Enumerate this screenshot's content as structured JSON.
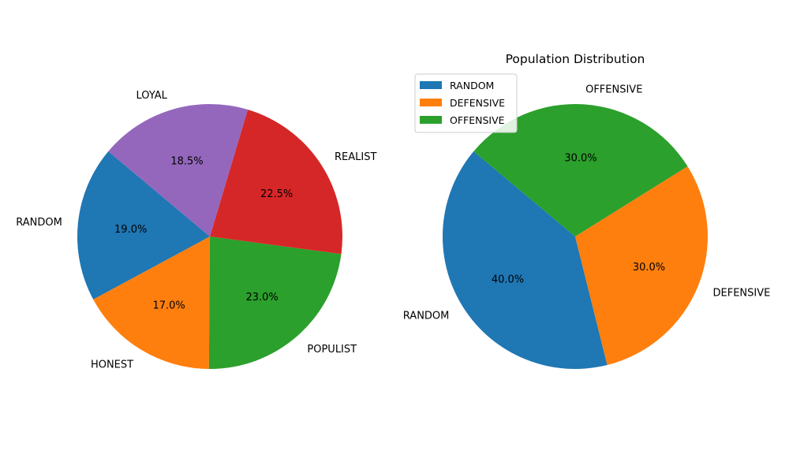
{
  "chart_data": [
    {
      "type": "pie",
      "title": "",
      "start_angle_deg": 140,
      "counterclockwise": true,
      "autopct_format": "{value}%",
      "slices": [
        {
          "label": "RANDOM",
          "value": 19.0,
          "pct_text": "19.0%",
          "color": "#1f77b4"
        },
        {
          "label": "HONEST",
          "value": 17.0,
          "pct_text": "17.0%",
          "color": "#ff7f0e"
        },
        {
          "label": "POPULIST",
          "value": 23.0,
          "pct_text": "23.0%",
          "color": "#2ca02c"
        },
        {
          "label": "REALIST",
          "value": 22.5,
          "pct_text": "22.5%",
          "color": "#d62728"
        },
        {
          "label": "LOYAL",
          "value": 18.5,
          "pct_text": "18.5%",
          "color": "#9467bd"
        }
      ],
      "legend": null
    },
    {
      "type": "pie",
      "title": "Population Distribution",
      "start_angle_deg": 140,
      "counterclockwise": true,
      "slices": [
        {
          "label": "RANDOM",
          "value": 40.0,
          "pct_text": "40.0%",
          "color": "#1f77b4"
        },
        {
          "label": "DEFENSIVE",
          "value": 30.0,
          "pct_text": "30.0%",
          "color": "#ff7f0e"
        },
        {
          "label": "OFFENSIVE",
          "value": 30.0,
          "pct_text": "30.0%",
          "color": "#2ca02c"
        }
      ],
      "legend": {
        "placement": "upper-left",
        "entries": [
          "RANDOM",
          "DEFENSIVE",
          "OFFENSIVE"
        ]
      }
    }
  ]
}
